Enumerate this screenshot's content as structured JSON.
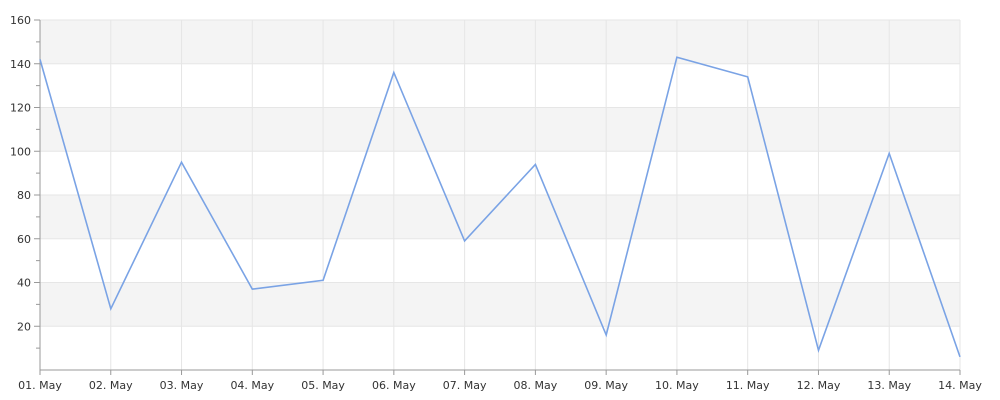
{
  "chart_data": {
    "type": "line",
    "x": [
      "01. May",
      "02. May",
      "03. May",
      "04. May",
      "05. May",
      "06. May",
      "07. May",
      "08. May",
      "09. May",
      "10. May",
      "11. May",
      "12. May",
      "13. May",
      "14. May"
    ],
    "series": [
      {
        "values": [
          142,
          28,
          95,
          37,
          41,
          136,
          59,
          94,
          16,
          143,
          134,
          9,
          99,
          6
        ]
      }
    ],
    "ylim": [
      0,
      160
    ],
    "yticks": [
      20,
      40,
      60,
      80,
      100,
      120,
      140,
      160
    ],
    "grid": true,
    "legend": "none",
    "colors": {
      "line": "#7aa3e5",
      "band": "#f4f4f4",
      "grid": "#e6e6e6",
      "axis": "#999999",
      "text": "#333333"
    }
  }
}
